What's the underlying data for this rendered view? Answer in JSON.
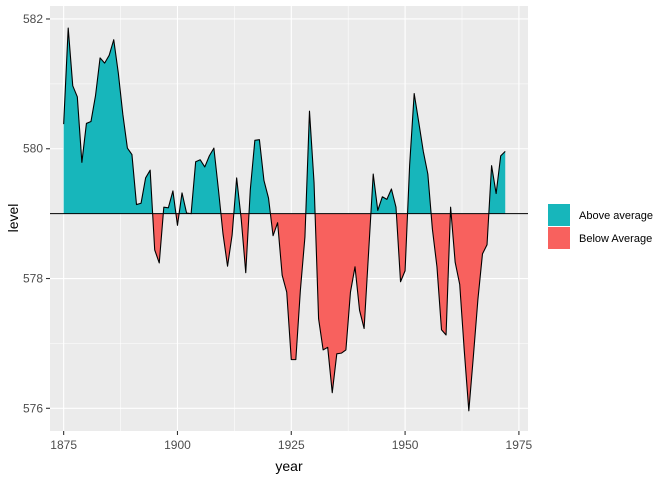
{
  "chart_data": {
    "type": "area",
    "xlabel": "year",
    "ylabel": "level",
    "xlim": [
      1872,
      1977
    ],
    "ylim": [
      575.65,
      582.2
    ],
    "x_ticks": [
      1875,
      1900,
      1925,
      1950,
      1975
    ],
    "y_ticks": [
      576,
      578,
      580,
      582
    ],
    "reference_line": 579,
    "grid": true,
    "legend_position": "right",
    "colors": {
      "above": "#17B6BB",
      "below": "#F8615E",
      "panel": "#EBEBEB",
      "grid": "#FFFFFF",
      "line": "#000000"
    },
    "legend": [
      {
        "label": "Above average",
        "color": "#17B6BB"
      },
      {
        "label": "Below Average",
        "color": "#F8615E"
      }
    ],
    "series": [
      {
        "x": [
          1875,
          1876,
          1877,
          1878,
          1879,
          1880,
          1881,
          1882,
          1883,
          1884,
          1885,
          1886,
          1887,
          1888,
          1889,
          1890,
          1891,
          1892,
          1893,
          1894,
          1895,
          1896,
          1897,
          1898,
          1899,
          1900,
          1901,
          1902,
          1903,
          1904,
          1905,
          1906,
          1907,
          1908,
          1909,
          1910,
          1911,
          1912,
          1913,
          1914,
          1915,
          1916,
          1917,
          1918,
          1919,
          1920,
          1921,
          1922,
          1923,
          1924,
          1925,
          1926,
          1927,
          1928,
          1929,
          1930,
          1931,
          1932,
          1933,
          1934,
          1935,
          1936,
          1937,
          1938,
          1939,
          1940,
          1941,
          1942,
          1943,
          1944,
          1945,
          1946,
          1947,
          1948,
          1949,
          1950,
          1951,
          1952,
          1953,
          1954,
          1955,
          1956,
          1957,
          1958,
          1959,
          1960,
          1961,
          1962,
          1963,
          1964,
          1965,
          1966,
          1967,
          1968,
          1969,
          1970,
          1971,
          1972
        ],
        "values": [
          580.38,
          581.86,
          580.97,
          580.8,
          579.79,
          580.39,
          580.42,
          580.82,
          581.4,
          581.32,
          581.44,
          581.68,
          581.17,
          580.53,
          580.01,
          579.91,
          579.14,
          579.16,
          579.55,
          579.67,
          578.44,
          578.24,
          579.1,
          579.09,
          579.35,
          578.82,
          579.32,
          579.01,
          579,
          579.8,
          579.83,
          579.72,
          579.89,
          580.01,
          579.37,
          578.69,
          578.19,
          578.67,
          579.55,
          578.92,
          578.09,
          579.37,
          580.13,
          580.14,
          579.51,
          579.24,
          578.66,
          578.86,
          578.05,
          577.79,
          576.75,
          576.75,
          577.82,
          578.64,
          580.58,
          579.48,
          577.38,
          576.9,
          576.94,
          576.24,
          576.84,
          576.85,
          576.9,
          577.79,
          578.18,
          577.51,
          577.23,
          578.42,
          579.61,
          579.05,
          579.26,
          579.22,
          579.38,
          579.1,
          577.95,
          578.12,
          579.75,
          580.85,
          580.41,
          579.96,
          579.61,
          578.76,
          578.18,
          577.21,
          577.13,
          579.1,
          578.25,
          577.91,
          576.89,
          575.96,
          576.8,
          577.68,
          578.38,
          578.52,
          579.74,
          579.31,
          579.89,
          579.96
        ]
      }
    ]
  }
}
